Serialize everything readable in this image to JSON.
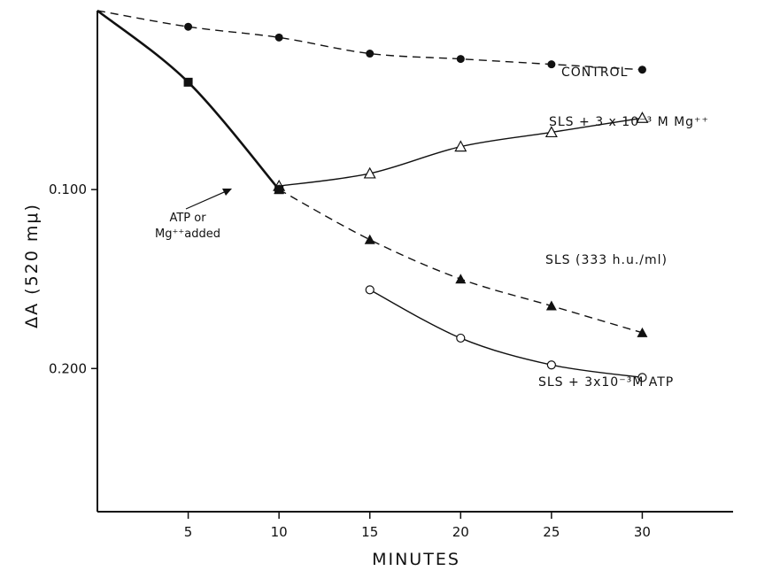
{
  "chart_data": {
    "type": "line",
    "xlabel": "MINUTES",
    "ylabel": "ΔA (520 mμ)",
    "x_ticks": [
      5,
      10,
      15,
      20,
      25,
      30
    ],
    "y_ticks": [
      0.1,
      0.2
    ],
    "y_tick_labels": [
      "0.100",
      "0.200"
    ],
    "xlim": [
      0,
      35
    ],
    "ylim": [
      0,
      0.28
    ],
    "y_inverted": true,
    "annotation": {
      "text_line1": "ATP or",
      "text_line2": "Mg⁺⁺added",
      "x": 10,
      "y": 0.1
    },
    "series": [
      {
        "name": "CONTROL",
        "marker": "filled-circle",
        "line": "dashed",
        "x": [
          0,
          5,
          10,
          15,
          20,
          25,
          30
        ],
        "y": [
          0,
          0.009,
          0.015,
          0.024,
          0.027,
          0.03,
          0.033
        ]
      },
      {
        "name": "SLS + 3 x 10⁻³ M  Mg⁺⁺",
        "marker": "open-triangle",
        "line": "solid",
        "x": [
          10,
          15,
          20,
          25,
          30
        ],
        "y": [
          0.098,
          0.091,
          0.076,
          0.068,
          0.06
        ]
      },
      {
        "name": "SLS (333 h.u./ml)",
        "marker": "filled-triangle",
        "line": "dashed",
        "x": [
          10,
          15,
          20,
          25,
          30
        ],
        "y": [
          0.1,
          0.128,
          0.15,
          0.165,
          0.18
        ]
      },
      {
        "name": "SLS + 3x10⁻³M  ATP",
        "marker": "open-circle",
        "line": "solid",
        "x": [
          15,
          20,
          25,
          30
        ],
        "y": [
          0.156,
          0.183,
          0.198,
          0.205
        ]
      },
      {
        "name": "",
        "marker": "filled-square",
        "line": "solid-heavy",
        "x": [
          0,
          5,
          10
        ],
        "y": [
          0,
          0.04,
          0.1
        ]
      }
    ]
  }
}
